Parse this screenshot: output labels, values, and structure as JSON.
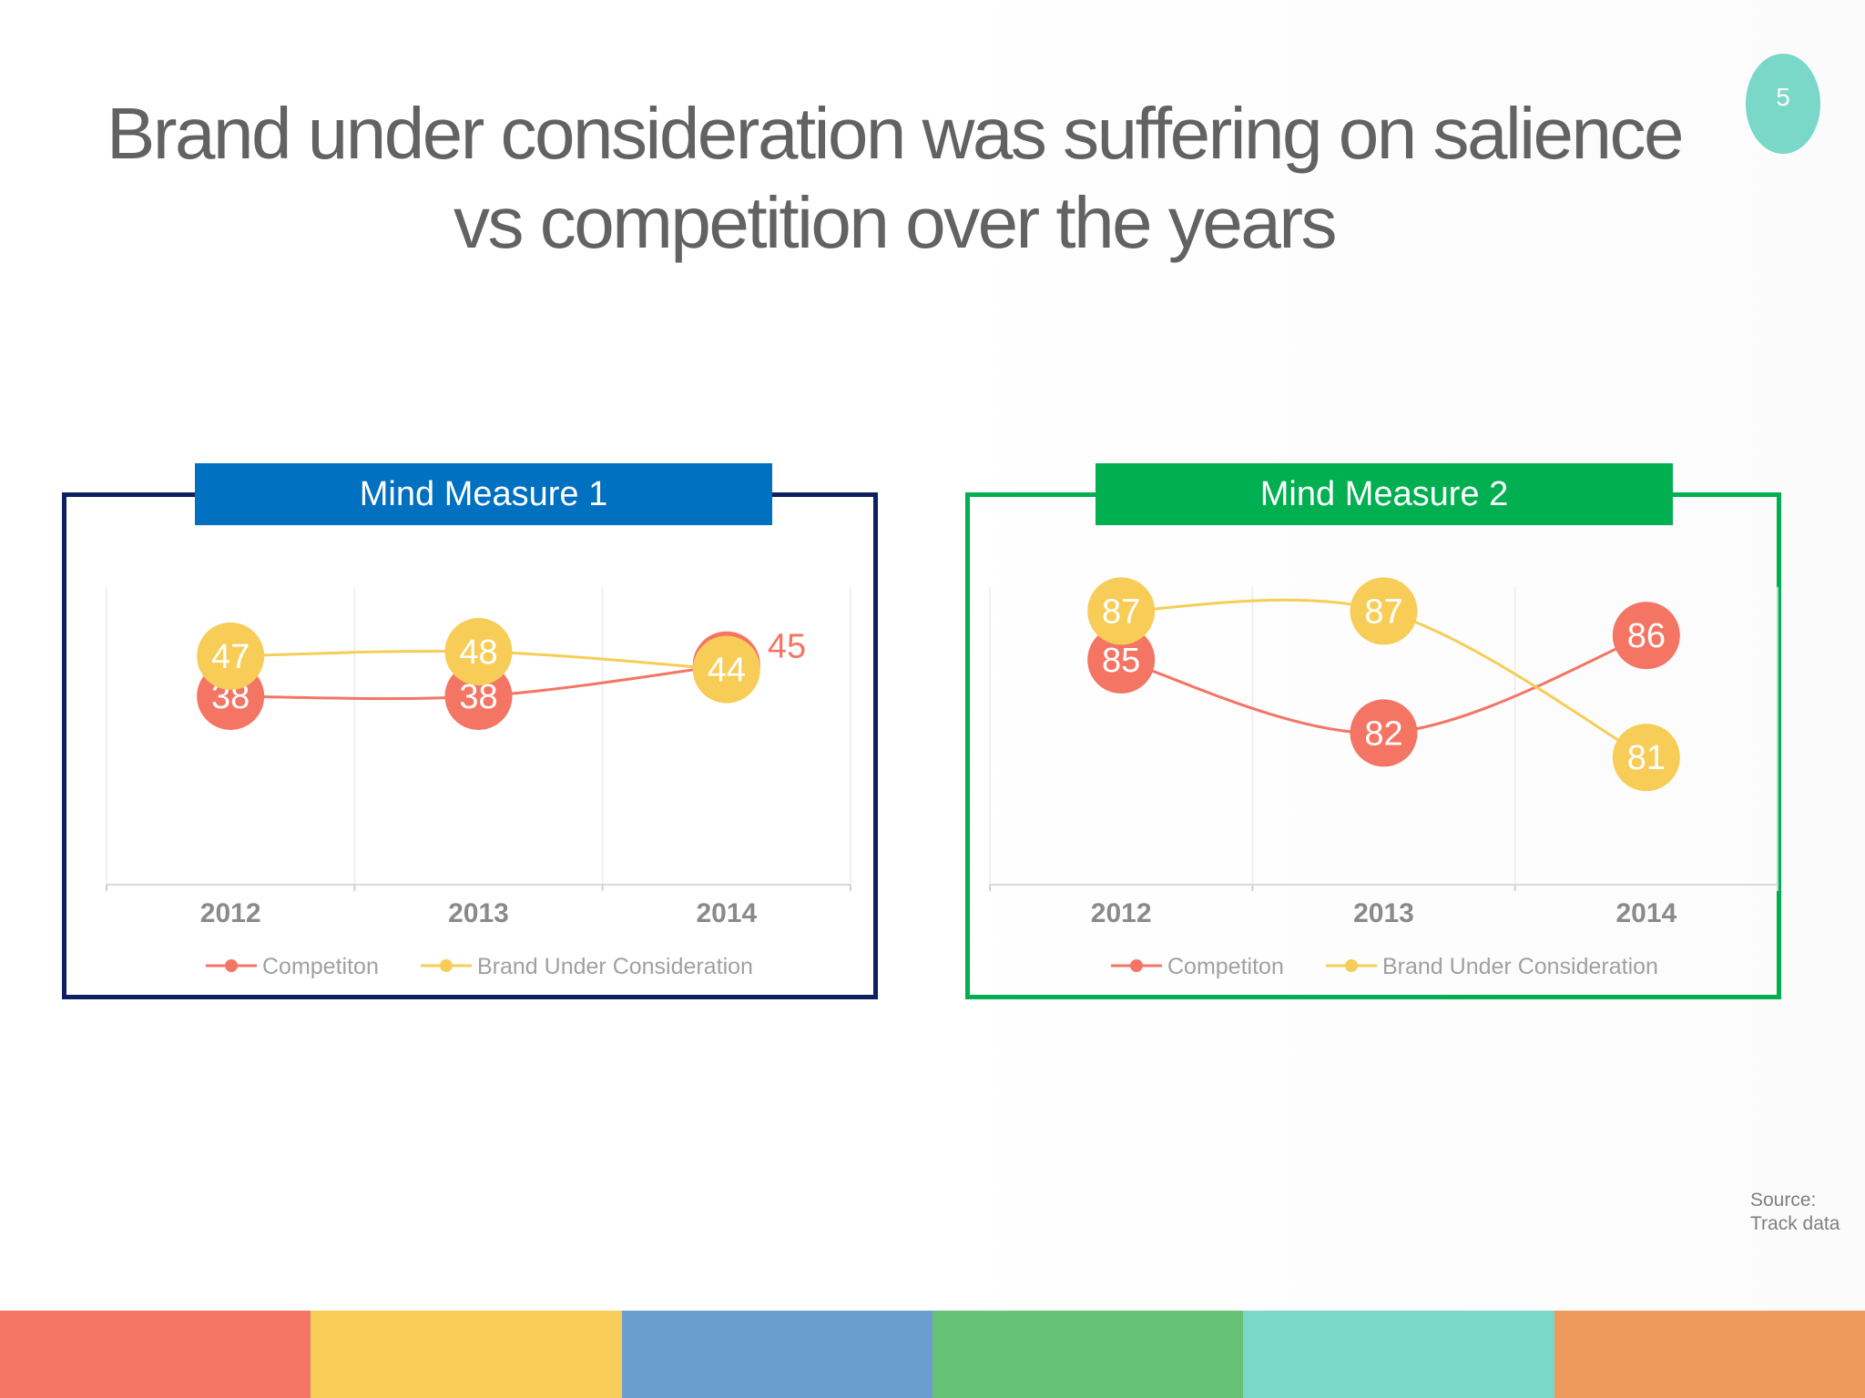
{
  "slide": {
    "title_line1": "Brand under consideration was suffering on salience",
    "title_line2": "vs competition over the years",
    "page_number": "5",
    "source_label": "Source:",
    "source_value": "Track data"
  },
  "colors": {
    "competition": "#f47564",
    "brand": "#f7cd57",
    "bars": [
      "#f47564",
      "#f7cd57",
      "#6a9ecf",
      "#66c274",
      "#79d8c7",
      "#ee9a5c"
    ]
  },
  "chart_data": [
    {
      "type": "line",
      "title": "Mind Measure 1",
      "categories": [
        "2012",
        "2013",
        "2014"
      ],
      "series": [
        {
          "name": "Competiton",
          "values": [
            38,
            38,
            45
          ]
        },
        {
          "name": "Brand Under Consideration",
          "values": [
            47,
            48,
            44
          ]
        }
      ],
      "ylim": [
        0,
        60
      ],
      "grid": true,
      "legend": "bottom"
    },
    {
      "type": "line",
      "title": "Mind Measure 2",
      "categories": [
        "2012",
        "2013",
        "2014"
      ],
      "series": [
        {
          "name": "Competiton",
          "values": [
            85,
            82,
            86
          ]
        },
        {
          "name": "Brand Under Consideration",
          "values": [
            87,
            87,
            81
          ]
        }
      ],
      "ylim": [
        76,
        89
      ],
      "grid": true,
      "legend": "bottom"
    }
  ]
}
